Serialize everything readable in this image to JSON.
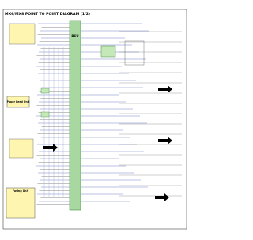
{
  "header": {
    "title": "MX6/MX8 POINT TO POINT DIAGRAM (1/2)"
  },
  "nodes": [
    {
      "label": "BCU"
    },
    {
      "label": "Paper Feed Unit"
    },
    {
      "label": "Fusing Unit"
    }
  ]
}
